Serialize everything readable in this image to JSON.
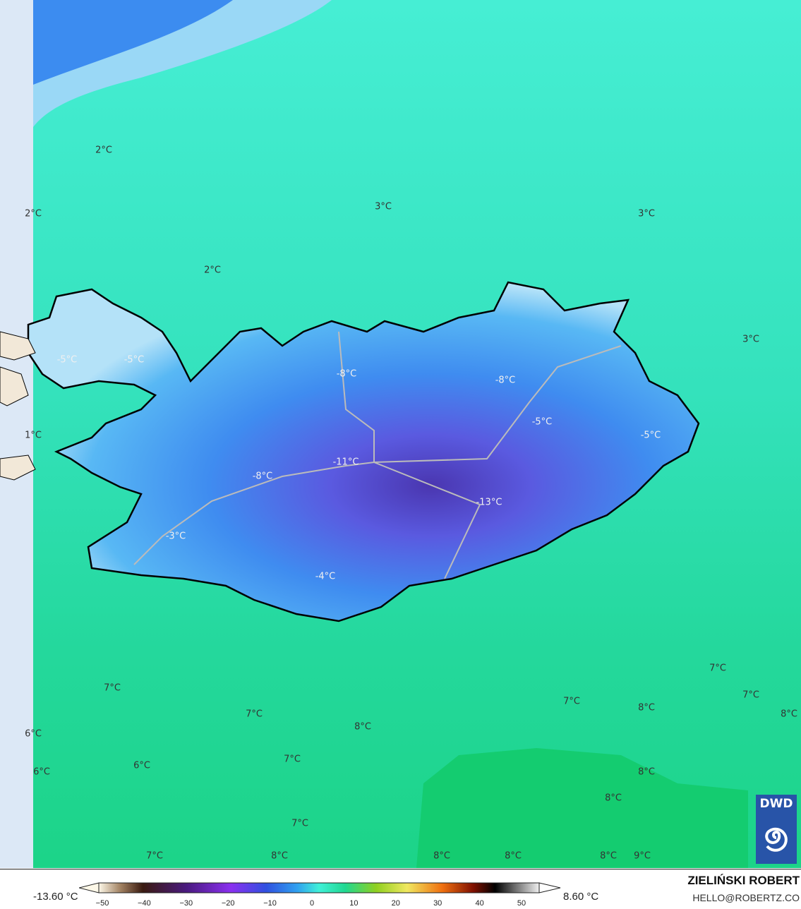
{
  "map": {
    "colors": {
      "sea_north": "#44ecd0",
      "sea_mid": "#2ee0b4",
      "sea_south": "#22d696",
      "sea_far_south": "#14cc70",
      "land_light": "#aee0f8",
      "land_mid": "#3aa0f0",
      "land_dark": "#5a5ae0",
      "land_core": "#4a3ab8"
    },
    "labels": [
      "2°C",
      "2°C",
      "3°C",
      "3°C",
      "2°C",
      "3°C",
      "-5°C",
      "-5°C",
      "-8°C",
      "-8°C",
      "-5°C",
      "-5°C",
      "1°C",
      "-11°C",
      "-8°C",
      "-13°C",
      "-3°C",
      "-4°C",
      "7°C",
      "7°C",
      "7°C",
      "7°C",
      "8°C",
      "7°C",
      "8°C",
      "8°C",
      "6°C",
      "7°C",
      "6°C",
      "6°C",
      "8°C",
      "8°C",
      "7°C",
      "7°C",
      "8°C",
      "8°C",
      "8°C",
      "8°C",
      "9°C"
    ]
  },
  "logo": {
    "text": "DWD"
  },
  "colorbar": {
    "min_label": "-13.60 °C",
    "max_label": "8.60 °C",
    "ticks": [
      "−50",
      "−40",
      "−30",
      "−20",
      "−10",
      "0",
      "10",
      "20",
      "30",
      "40",
      "50"
    ]
  },
  "credits": {
    "author": "ZIELIŃSKI ROBERT",
    "email": "HELLO@ROBERTZ.CO"
  }
}
